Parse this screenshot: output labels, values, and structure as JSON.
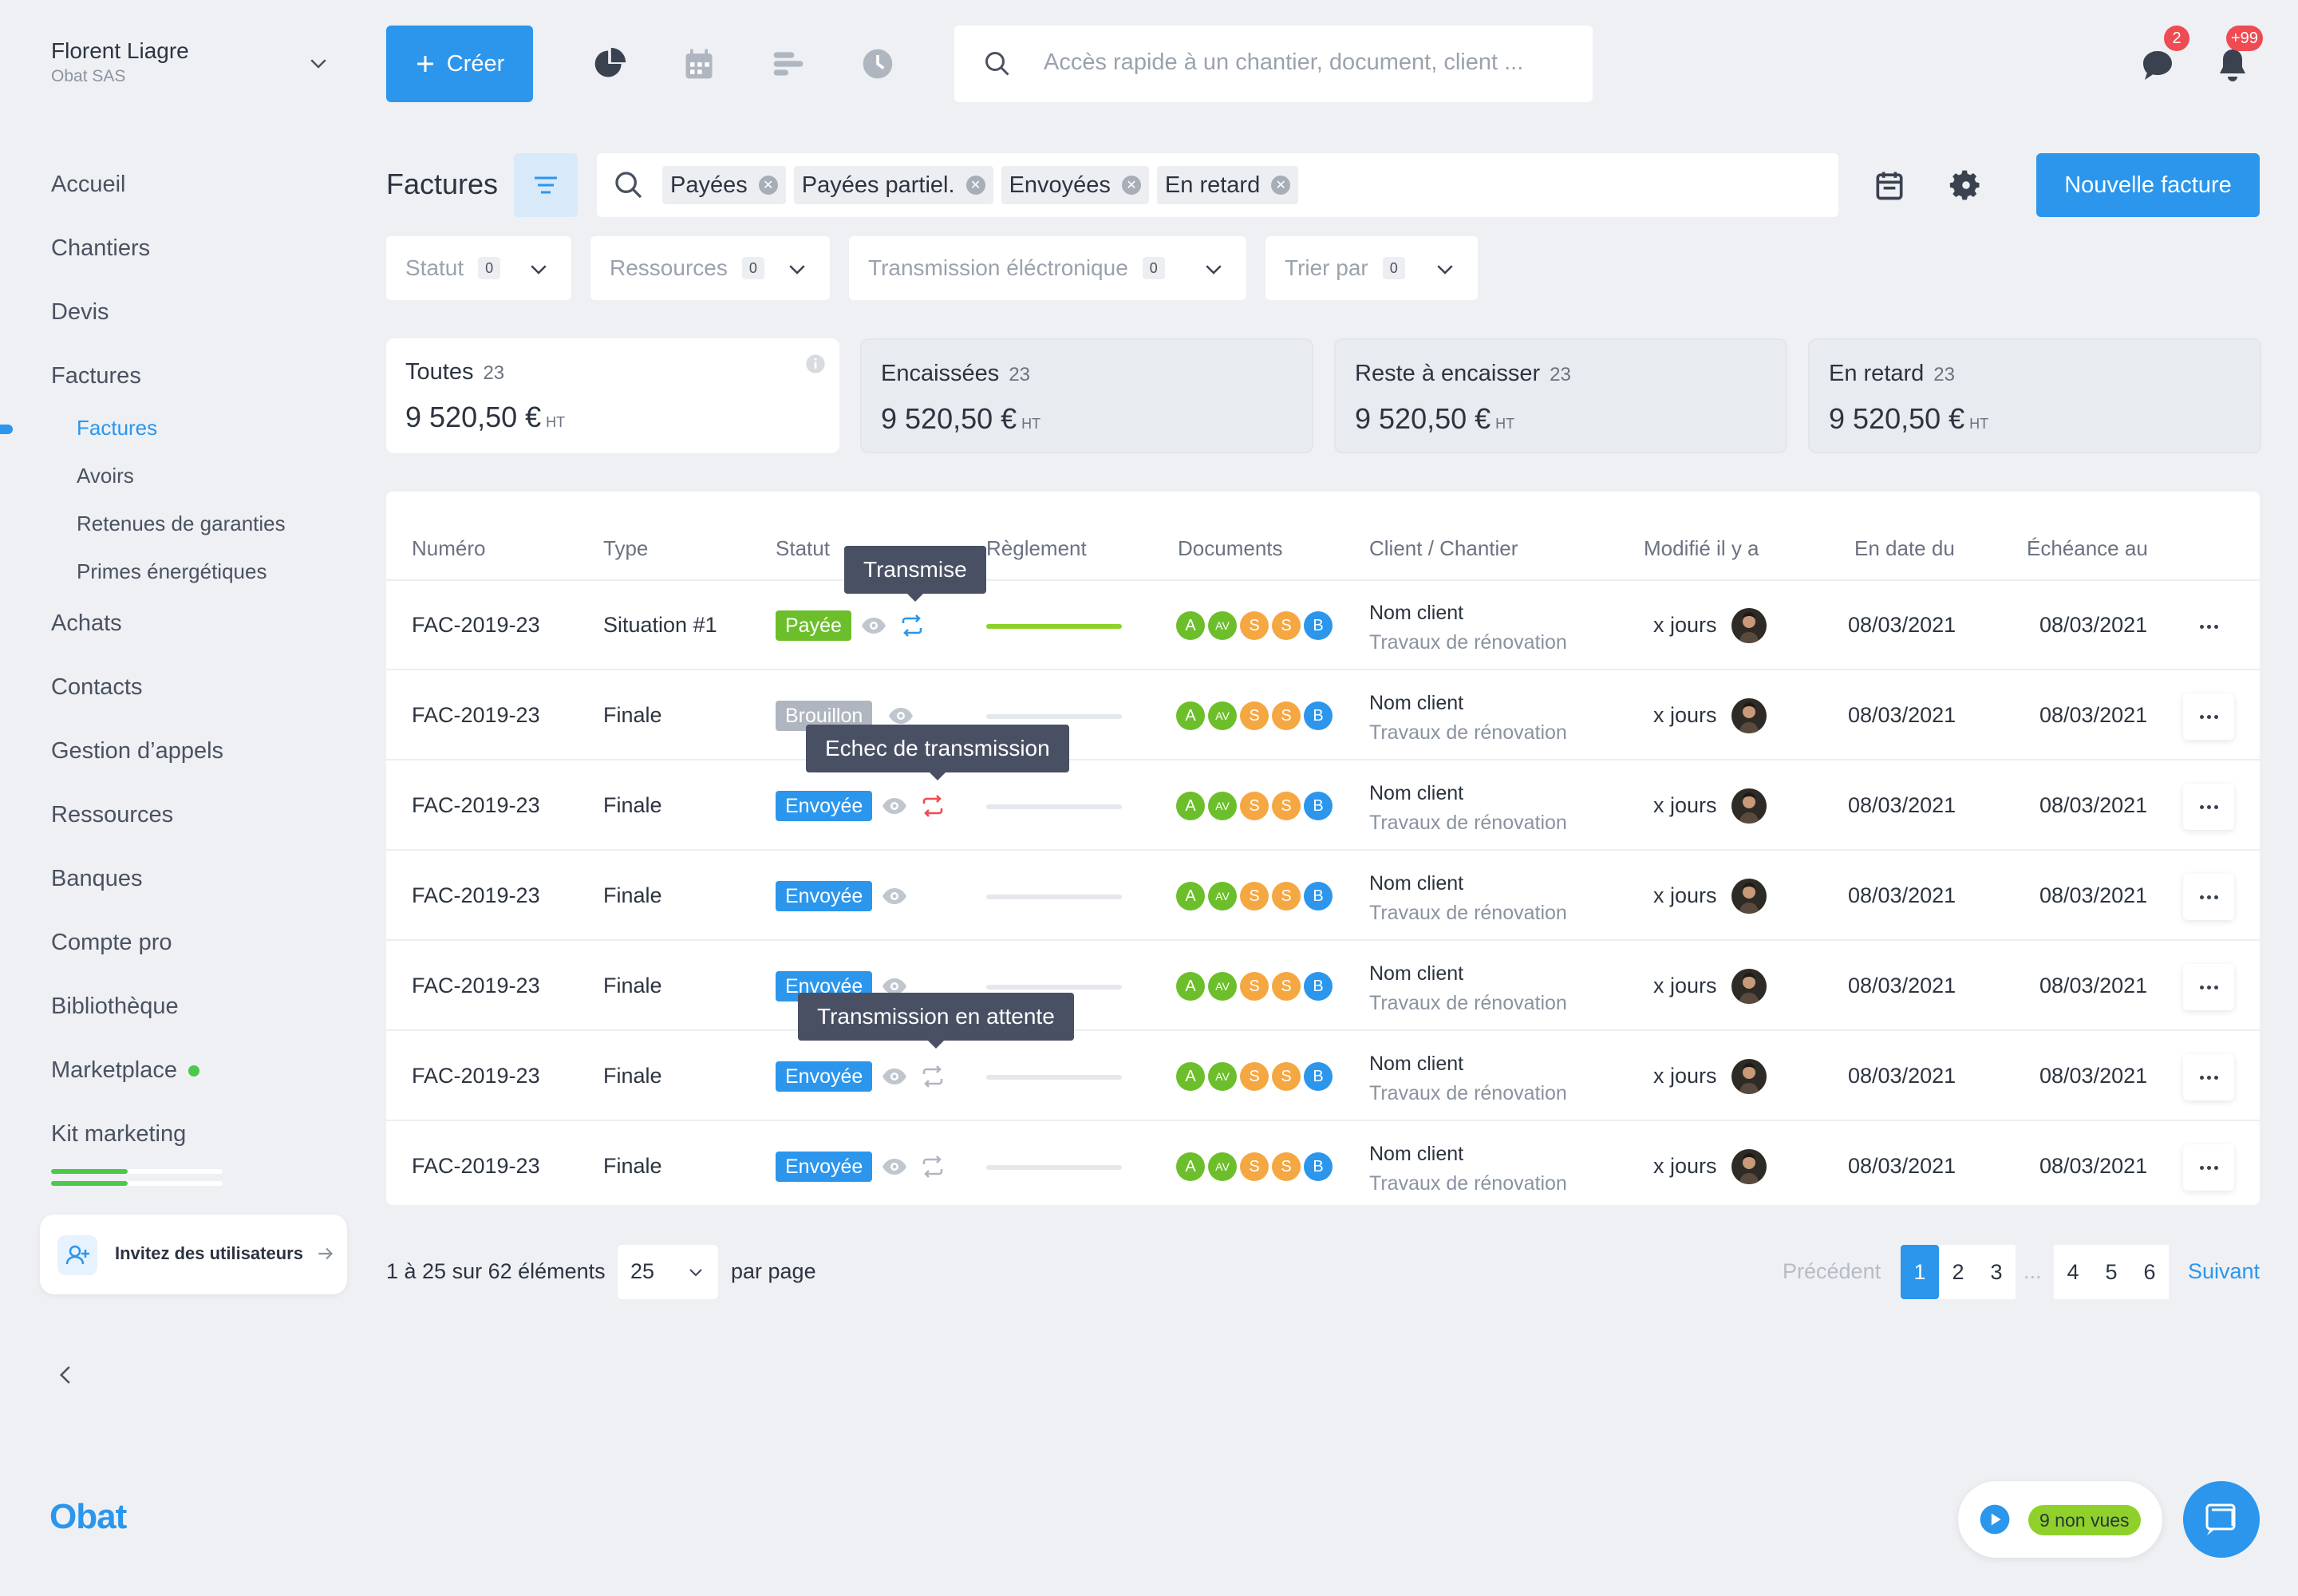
{
  "user": {
    "name": "Florent Liagre",
    "company": "Obat SAS"
  },
  "nav": {
    "items": [
      "Accueil",
      "Chantiers",
      "Devis",
      "Factures"
    ],
    "sub": [
      "Factures",
      "Avoirs",
      "Retenues de garanties",
      "Primes énergétiques"
    ],
    "items2": [
      "Achats",
      "Contacts",
      "Gestion d’appels",
      "Ressources",
      "Banques",
      "Compte pro",
      "Bibliothèque",
      "Marketplace",
      "Kit marketing"
    ]
  },
  "invite": {
    "label": "Invitez des utilisateurs"
  },
  "logo": "Obat",
  "topbar": {
    "create_label": "Créer",
    "search_placeholder": "Accès rapide à un chantier, document, client ...",
    "messages_badge": "2",
    "notifications_badge": "+99"
  },
  "page": {
    "title": "Factures",
    "new_invoice_label": "Nouvelle facture",
    "chips": [
      "Payées",
      "Payées partiel.",
      "Envoyées",
      "En retard"
    ],
    "dropdowns": [
      {
        "label": "Statut",
        "count": "0"
      },
      {
        "label": "Ressources",
        "count": "0"
      },
      {
        "label": "Transmission éléctronique",
        "count": "0"
      },
      {
        "label": "Trier par",
        "count": "0"
      }
    ]
  },
  "cards": [
    {
      "label": "Toutes",
      "count": "23",
      "amount": "9 520,50 €",
      "unit": "HT"
    },
    {
      "label": "Encaissées",
      "count": "23",
      "amount": "9 520,50 €",
      "unit": "HT"
    },
    {
      "label": "Reste à encaisser",
      "count": "23",
      "amount": "9 520,50 €",
      "unit": "HT"
    },
    {
      "label": "En retard",
      "count": "23",
      "amount": "9 520,50 €",
      "unit": "HT"
    }
  ],
  "table": {
    "columns": [
      "Numéro",
      "Type",
      "Statut",
      "Règlement",
      "Documents",
      "Client / Chantier",
      "Modifié il y a",
      "En date du",
      "Échéance au"
    ],
    "doc_labels": [
      "A",
      "AV",
      "S",
      "S",
      "B"
    ],
    "rows": [
      {
        "number": "FAC-2019-23",
        "type": "Situation #1",
        "status": "Payée",
        "status_color": "#6cbf2b",
        "sync": "ok",
        "payment": 1.0,
        "client": "Nom client",
        "site": "Travaux de rénovation",
        "modified": "x jours",
        "date": "08/03/2021",
        "due": "08/03/2021"
      },
      {
        "number": "FAC-2019-23",
        "type": "Finale",
        "status": "Brouillon",
        "status_color": "#b0b6c0",
        "sync": "none",
        "payment": 0,
        "client": "Nom client",
        "site": "Travaux de rénovation",
        "modified": "x jours",
        "date": "08/03/2021",
        "due": "08/03/2021"
      },
      {
        "number": "FAC-2019-23",
        "type": "Finale",
        "status": "Envoyée",
        "status_color": "#2b96ec",
        "sync": "error",
        "payment": 0,
        "client": "Nom client",
        "site": "Travaux de rénovation",
        "modified": "x jours",
        "date": "08/03/2021",
        "due": "08/03/2021"
      },
      {
        "number": "FAC-2019-23",
        "type": "Finale",
        "status": "Envoyée",
        "status_color": "#2b96ec",
        "sync": "none",
        "payment": 0,
        "client": "Nom client",
        "site": "Travaux de rénovation",
        "modified": "x jours",
        "date": "08/03/2021",
        "due": "08/03/2021"
      },
      {
        "number": "FAC-2019-23",
        "type": "Finale",
        "status": "Envoyée",
        "status_color": "#2b96ec",
        "sync": "none",
        "payment": 0,
        "client": "Nom client",
        "site": "Travaux de rénovation",
        "modified": "x jours",
        "date": "08/03/2021",
        "due": "08/03/2021"
      },
      {
        "number": "FAC-2019-23",
        "type": "Finale",
        "status": "Envoyée",
        "status_color": "#2b96ec",
        "sync": "pending",
        "payment": 0,
        "client": "Nom client",
        "site": "Travaux de rénovation",
        "modified": "x jours",
        "date": "08/03/2021",
        "due": "08/03/2021"
      },
      {
        "number": "FAC-2019-23",
        "type": "Finale",
        "status": "Envoyée",
        "status_color": "#2b96ec",
        "sync": "pending",
        "payment": 0,
        "client": "Nom client",
        "site": "Travaux de rénovation",
        "modified": "x jours",
        "date": "08/03/2021",
        "due": "08/03/2021"
      }
    ]
  },
  "tooltips": [
    "Transmise",
    "Echec de transmission",
    "Transmission en attente"
  ],
  "pagination": {
    "summary": "1 à 25 sur 62 éléments",
    "per_page": "25",
    "per_page_label": "par page",
    "previous": "Précédent",
    "next": "Suivant",
    "pages": [
      "1",
      "2",
      "3",
      "4",
      "5",
      "6"
    ],
    "current": "1",
    "ellipsis": "..."
  },
  "video": {
    "unseen_label": "9 non vues"
  },
  "colors": {
    "accent": "#2b96ec",
    "success": "#6cbf2b",
    "danger": "#ef4b52",
    "warning": "#f5a742"
  }
}
